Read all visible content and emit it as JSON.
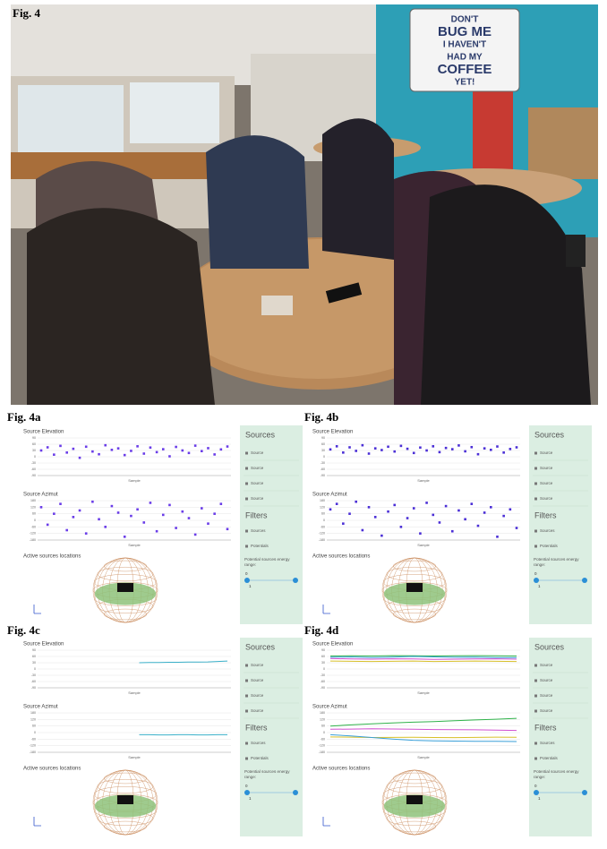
{
  "figure": {
    "label": "Fig. 4",
    "photo": {
      "sign": [
        "DON'T",
        "BUG ME",
        "I HAVEN'T",
        "HAD MY",
        "COFFEE",
        "YET!"
      ]
    }
  },
  "panels": [
    {
      "label": "Fig. 4a",
      "sphere_title": "Active sources locations",
      "charts": [
        {
          "type": "scatter",
          "title": "Source Elevation",
          "xlabel": "Sample",
          "ylim": [
            -90,
            90
          ],
          "yticks": [
            90,
            60,
            30,
            0,
            -30,
            -60,
            -90
          ],
          "series": [
            {
              "color": "#6a3de8",
              "values": [
                30,
                45,
                10,
                52,
                20,
                38,
                -5,
                48,
                25,
                12,
                55,
                33,
                40,
                8,
                28,
                50,
                15,
                44,
                22,
                36,
                2,
                47,
                30,
                18,
                53,
                27,
                41,
                11,
                35,
                49
              ]
            }
          ]
        },
        {
          "type": "scatter",
          "title": "Source Azimut",
          "xlabel": "Sample",
          "ylim": [
            -180,
            180
          ],
          "yticks": [
            180,
            120,
            60,
            0,
            -60,
            -120,
            -180
          ],
          "series": [
            {
              "color": "#6a3de8",
              "values": [
                120,
                -40,
                60,
                150,
                -90,
                30,
                90,
                -120,
                170,
                10,
                -60,
                130,
                70,
                -150,
                40,
                100,
                -20,
                160,
                -100,
                50,
                140,
                -70,
                80,
                20,
                -130,
                110,
                -30,
                60,
                150,
                -80
              ]
            }
          ]
        }
      ],
      "sidebar": {
        "sources_heading": "Sources",
        "sources": [
          "Source",
          "Source",
          "Source",
          "Source"
        ],
        "filters_heading": "Filters",
        "filters": [
          "Sources",
          "Potentials"
        ],
        "energy_label": "Potential sources energy range:",
        "range_min": 0,
        "range_max": 1
      }
    },
    {
      "label": "Fig. 4b",
      "sphere_title": "Active sources locations",
      "charts": [
        {
          "type": "scatter",
          "title": "Source Elevation",
          "xlabel": "Sample",
          "ylim": [
            -90,
            90
          ],
          "yticks": [
            90,
            60,
            30,
            0,
            -30,
            -60,
            -90
          ],
          "series": [
            {
              "color": "#4b2fd6",
              "values": [
                35,
                50,
                20,
                45,
                28,
                55,
                15,
                40,
                32,
                48,
                25,
                52,
                38,
                18,
                44,
                30,
                50,
                22,
                42,
                36,
                54,
                26,
                46,
                12,
                40,
                33,
                49,
                20,
                37,
                45
              ]
            }
          ]
        },
        {
          "type": "scatter",
          "title": "Source Azimut",
          "xlabel": "Sample",
          "ylim": [
            -180,
            180
          ],
          "yticks": [
            180,
            120,
            60,
            0,
            -60,
            -120,
            -180
          ],
          "series": [
            {
              "color": "#4b2fd6",
              "values": [
                100,
                150,
                -30,
                60,
                170,
                -90,
                120,
                30,
                -140,
                80,
                140,
                -60,
                20,
                110,
                -120,
                160,
                50,
                -20,
                130,
                -100,
                90,
                10,
                150,
                -50,
                70,
                120,
                -150,
                40,
                100,
                -70
              ]
            }
          ]
        }
      ],
      "sidebar": {
        "sources_heading": "Sources",
        "sources": [
          "Source",
          "Source",
          "Source",
          "Source"
        ],
        "filters_heading": "Filters",
        "filters": [
          "Sources",
          "Potentials"
        ],
        "energy_label": "Potential sources energy range:",
        "range_min": 0,
        "range_max": 1
      }
    },
    {
      "label": "Fig. 4c",
      "sphere_title": "Active sources locations",
      "charts": [
        {
          "type": "line",
          "title": "Source Elevation",
          "xlabel": "Sample",
          "ylim": [
            -90,
            90
          ],
          "yticks": [
            90,
            60,
            30,
            0,
            -30,
            -60,
            -90
          ],
          "series": [
            {
              "color": "#3ab0c9",
              "values": [
                null,
                null,
                null,
                null,
                null,
                null,
                null,
                null,
                null,
                null,
                30,
                31,
                31,
                32,
                32,
                33,
                33,
                34,
                36,
                38
              ]
            }
          ]
        },
        {
          "type": "line",
          "title": "Source Azimut",
          "xlabel": "Sample",
          "ylim": [
            -180,
            180
          ],
          "yticks": [
            180,
            120,
            60,
            0,
            -60,
            -120,
            -180
          ],
          "series": [
            {
              "color": "#3ab0c9",
              "values": [
                null,
                null,
                null,
                null,
                null,
                null,
                null,
                null,
                null,
                null,
                -20,
                -20,
                -21,
                -21,
                -20,
                -20,
                -21,
                -21,
                -20,
                -20
              ]
            }
          ]
        }
      ],
      "sidebar": {
        "sources_heading": "Sources",
        "sources": [
          "Source",
          "Source",
          "Source",
          "Source"
        ],
        "filters_heading": "Filters",
        "filters": [
          "Sources",
          "Potentials"
        ],
        "energy_label": "Potential sources energy range:",
        "range_min": 0,
        "range_max": 1
      }
    },
    {
      "label": "Fig. 4d",
      "sphere_title": "Active sources locations",
      "charts": [
        {
          "type": "line",
          "title": "Source Elevation",
          "xlabel": "Sample",
          "ylim": [
            -90,
            90
          ],
          "yticks": [
            90,
            60,
            30,
            0,
            -30,
            -60,
            -90
          ],
          "series": [
            {
              "color": "#2fb24a",
              "values": [
                62,
                63,
                62,
                64,
                63,
                62,
                63,
                64,
                63,
                62
              ]
            },
            {
              "color": "#3a9fd8",
              "values": [
                56,
                58,
                55,
                57,
                60,
                58,
                56,
                57,
                55,
                54
              ]
            },
            {
              "color": "#d04fd0",
              "values": [
                50,
                48,
                47,
                49,
                48,
                46,
                47,
                48,
                49,
                47
              ]
            },
            {
              "color": "#d8c02a",
              "values": [
                38,
                37,
                36,
                37,
                38,
                36,
                37,
                38,
                37,
                36
              ]
            }
          ]
        },
        {
          "type": "line",
          "title": "Source Azimut",
          "xlabel": "Sample",
          "ylim": [
            -180,
            180
          ],
          "yticks": [
            180,
            120,
            60,
            0,
            -60,
            -120,
            -180
          ],
          "series": [
            {
              "color": "#2fb24a",
              "values": [
                60,
                70,
                80,
                88,
                95,
                100,
                108,
                115,
                122,
                130
              ]
            },
            {
              "color": "#d04fd0",
              "values": [
                30,
                32,
                35,
                33,
                30,
                28,
                27,
                25,
                22,
                20
              ]
            },
            {
              "color": "#d8c02a",
              "values": [
                -40,
                -42,
                -45,
                -44,
                -43,
                -45,
                -46,
                -44,
                -42,
                -43
              ]
            },
            {
              "color": "#3a9fd8",
              "values": [
                -20,
                -30,
                -45,
                -60,
                -70,
                -75,
                -78,
                -80,
                -80,
                -82
              ]
            }
          ]
        }
      ],
      "sidebar": {
        "sources_heading": "Sources",
        "sources": [
          "Source",
          "Source",
          "Source",
          "Source"
        ],
        "filters_heading": "Filters",
        "filters": [
          "Sources",
          "Potentials"
        ],
        "energy_label": "Potential sources energy range:",
        "range_min": 0,
        "range_max": 1
      }
    }
  ]
}
